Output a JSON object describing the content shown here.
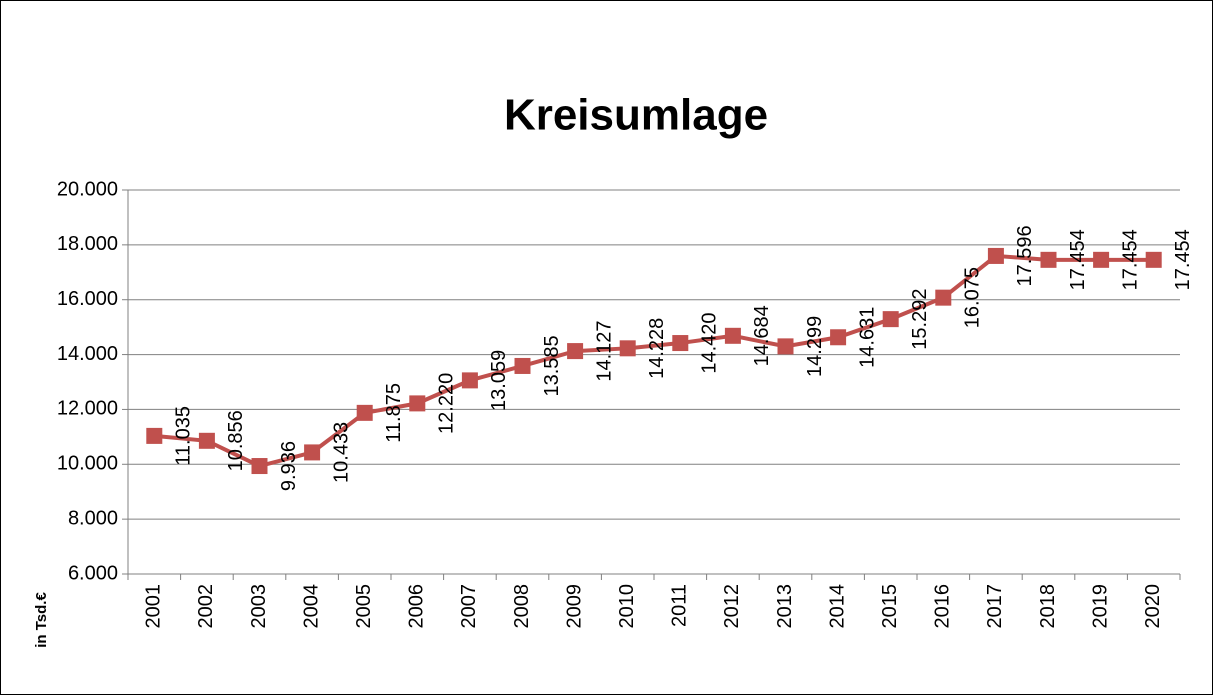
{
  "chart_data": {
    "type": "line",
    "title": "Kreisumlage",
    "y_axis_label": "in Tsd.€",
    "categories": [
      "2001",
      "2002",
      "2003",
      "2004",
      "2005",
      "2006",
      "2007",
      "2008",
      "2009",
      "2010",
      "2011",
      "2012",
      "2013",
      "2014",
      "2015",
      "2016",
      "2017",
      "2018",
      "2019",
      "2020"
    ],
    "series": [
      {
        "name": "Kreisumlage",
        "color": "#c0504d",
        "values": [
          11035,
          10856,
          9936,
          10433,
          11875,
          12220,
          13059,
          13585,
          14127,
          14228,
          14420,
          14684,
          14299,
          14631,
          15292,
          16075,
          17596,
          17454,
          17454,
          17454
        ],
        "value_labels": [
          "11.035",
          "10.856",
          "9.936",
          "10.433",
          "11.875",
          "12.220",
          "13.059",
          "13.585",
          "14.127",
          "14.228",
          "14.420",
          "14.684",
          "14.299",
          "14.631",
          "15.292",
          "16.075",
          "17.596",
          "17.454",
          "17.454",
          "17.454"
        ]
      }
    ],
    "ylim": [
      6000,
      20000
    ],
    "yticks": [
      {
        "value": 6000,
        "label": "6.000"
      },
      {
        "value": 8000,
        "label": "8.000"
      },
      {
        "value": 10000,
        "label": "10.000"
      },
      {
        "value": 12000,
        "label": "12.000"
      },
      {
        "value": 14000,
        "label": "14.000"
      },
      {
        "value": 16000,
        "label": "16.000"
      },
      {
        "value": 18000,
        "label": "18.000"
      },
      {
        "value": 20000,
        "label": "20.000"
      }
    ],
    "grid": true
  }
}
